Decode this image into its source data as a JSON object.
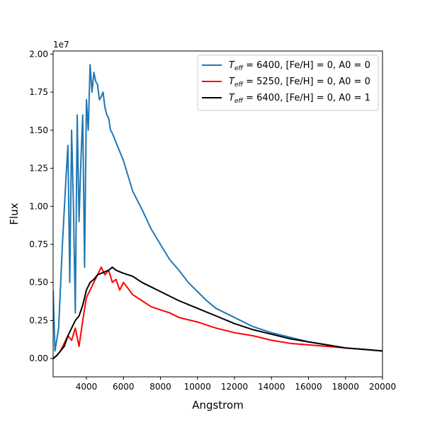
{
  "chart_data": {
    "type": "line",
    "title": "",
    "xlabel": "Angstrom",
    "ylabel": "Flux",
    "offset_text": "1e7",
    "xlim": [
      2200,
      20000
    ],
    "ylim": [
      -0.12,
      2.02
    ],
    "xticks": [
      4000,
      6000,
      8000,
      10000,
      12000,
      14000,
      16000,
      18000,
      20000
    ],
    "xtick_labels": [
      "4000",
      "6000",
      "8000",
      "10000",
      "12000",
      "14000",
      "16000",
      "18000",
      "20000"
    ],
    "yticks": [
      0.0,
      0.25,
      0.5,
      0.75,
      1.0,
      1.25,
      1.5,
      1.75,
      2.0
    ],
    "ytick_labels": [
      "0.00",
      "0.25",
      "0.50",
      "0.75",
      "1.00",
      "1.25",
      "1.50",
      "1.75",
      "2.00"
    ],
    "grid": false,
    "legend_position": "top-right",
    "series": [
      {
        "name": "T_eff = 6400, [Fe/H] = 0, A0 = 0",
        "legend": {
          "sym": "T",
          "sub": "eff",
          "rest": " = 6400, [Fe/H] = 0, A0 = 0"
        },
        "color": "#1f77b4",
        "x": [
          2200,
          2300,
          2500,
          2700,
          2900,
          3000,
          3100,
          3200,
          3300,
          3400,
          3500,
          3600,
          3700,
          3800,
          3900,
          4000,
          4100,
          4200,
          4300,
          4400,
          4500,
          4600,
          4700,
          4800,
          4900,
          5000,
          5100,
          5200,
          5300,
          5400,
          5600,
          5800,
          6000,
          6200,
          6500,
          7000,
          7500,
          8000,
          8500,
          9000,
          9500,
          10000,
          10500,
          11000,
          12000,
          13000,
          14000,
          15000,
          16000,
          17000,
          18000,
          19000,
          20000
        ],
        "y": [
          0.45,
          0.05,
          0.2,
          0.75,
          1.2,
          1.4,
          0.5,
          1.5,
          1.0,
          0.3,
          1.6,
          0.9,
          1.3,
          1.6,
          0.6,
          1.7,
          1.5,
          1.93,
          1.75,
          1.88,
          1.82,
          1.8,
          1.7,
          1.72,
          1.75,
          1.65,
          1.6,
          1.58,
          1.5,
          1.48,
          1.42,
          1.36,
          1.3,
          1.22,
          1.1,
          0.98,
          0.85,
          0.75,
          0.65,
          0.58,
          0.5,
          0.44,
          0.38,
          0.33,
          0.27,
          0.21,
          0.17,
          0.14,
          0.11,
          0.09,
          0.07,
          0.06,
          0.05
        ]
      },
      {
        "name": "T_eff = 5250, [Fe/H] = 0, A0 = 0",
        "legend": {
          "sym": "T",
          "sub": "eff",
          "rest": " = 5250, [Fe/H] = 0, A0 = 0"
        },
        "color": "#ff0000",
        "x": [
          2200,
          2400,
          2600,
          2800,
          3000,
          3200,
          3400,
          3600,
          3800,
          4000,
          4200,
          4400,
          4600,
          4800,
          5000,
          5200,
          5400,
          5600,
          5800,
          6000,
          6500,
          7000,
          7500,
          8000,
          8500,
          9000,
          10000,
          11000,
          12000,
          13000,
          14000,
          15000,
          16000,
          17000,
          18000,
          19000,
          20000
        ],
        "y": [
          0.0,
          0.02,
          0.05,
          0.1,
          0.15,
          0.12,
          0.2,
          0.08,
          0.25,
          0.4,
          0.45,
          0.5,
          0.55,
          0.6,
          0.55,
          0.58,
          0.5,
          0.52,
          0.45,
          0.5,
          0.42,
          0.38,
          0.34,
          0.32,
          0.3,
          0.27,
          0.24,
          0.2,
          0.17,
          0.15,
          0.12,
          0.1,
          0.09,
          0.08,
          0.07,
          0.06,
          0.05
        ]
      },
      {
        "name": "T_eff = 6400, [Fe/H] = 0, A0 = 1",
        "legend": {
          "sym": "T",
          "sub": "eff",
          "rest": " = 6400, [Fe/H] = 0, A0 = 1"
        },
        "color": "#000000",
        "x": [
          2200,
          2400,
          2600,
          2800,
          3000,
          3200,
          3400,
          3600,
          3800,
          4000,
          4200,
          4400,
          4600,
          4800,
          5000,
          5200,
          5400,
          5600,
          5800,
          6000,
          6500,
          7000,
          7500,
          8000,
          8500,
          9000,
          10000,
          11000,
          12000,
          13000,
          14000,
          15000,
          16000,
          17000,
          18000,
          19000,
          20000
        ],
        "y": [
          0.0,
          0.02,
          0.05,
          0.08,
          0.15,
          0.2,
          0.25,
          0.28,
          0.35,
          0.45,
          0.5,
          0.52,
          0.55,
          0.56,
          0.57,
          0.58,
          0.6,
          0.58,
          0.57,
          0.56,
          0.54,
          0.5,
          0.47,
          0.44,
          0.41,
          0.38,
          0.33,
          0.28,
          0.23,
          0.19,
          0.16,
          0.13,
          0.11,
          0.09,
          0.07,
          0.06,
          0.05
        ]
      }
    ]
  }
}
